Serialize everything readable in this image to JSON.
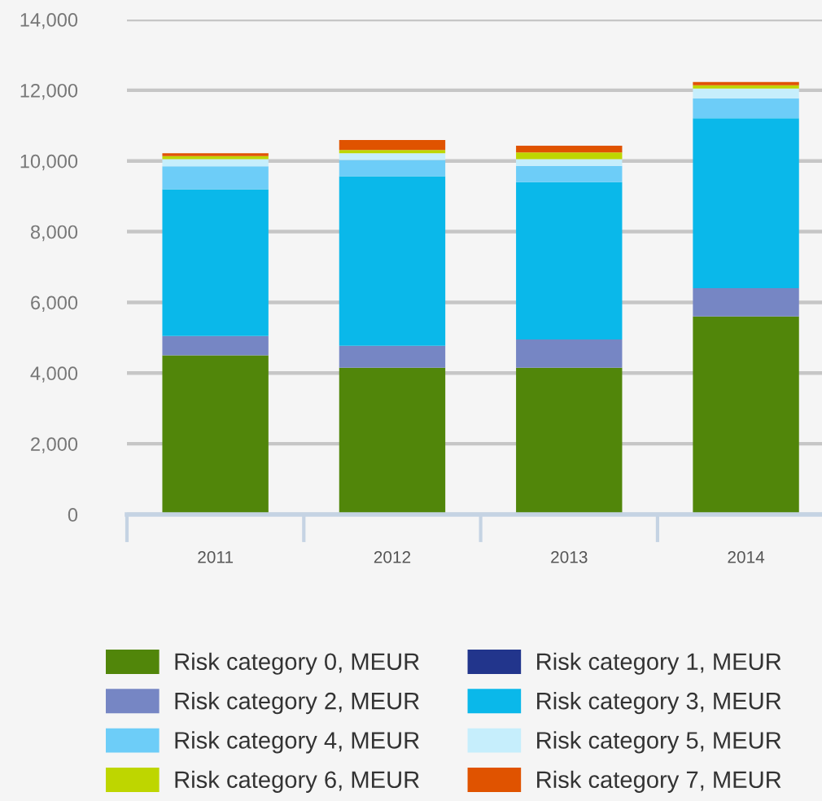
{
  "chart_data": {
    "type": "bar",
    "stacked": true,
    "categories": [
      "2011",
      "2012",
      "2013",
      "2014"
    ],
    "series": [
      {
        "name": "Risk category 0, MEUR",
        "color": "#51860a",
        "values": [
          4500,
          4150,
          4150,
          5600
        ]
      },
      {
        "name": "Risk category 1, MEUR",
        "color": "#22358c",
        "values": [
          0,
          0,
          0,
          0
        ]
      },
      {
        "name": "Risk category 2, MEUR",
        "color": "#7686c4",
        "values": [
          550,
          620,
          800,
          800
        ]
      },
      {
        "name": "Risk category 3, MEUR",
        "color": "#0ab8ea",
        "values": [
          4150,
          4800,
          4450,
          4810
        ]
      },
      {
        "name": "Risk category 4, MEUR",
        "color": "#6dcdf8",
        "values": [
          650,
          460,
          460,
          560
        ]
      },
      {
        "name": "Risk category 5, MEUR",
        "color": "#c6eefc",
        "values": [
          200,
          190,
          190,
          280
        ]
      },
      {
        "name": "Risk category 6, MEUR",
        "color": "#bed600",
        "values": [
          90,
          90,
          190,
          90
        ]
      },
      {
        "name": "Risk category 7, MEUR",
        "color": "#e05300",
        "values": [
          80,
          280,
          190,
          90
        ]
      }
    ],
    "ylim": [
      0,
      14000
    ],
    "yticks": [
      0,
      {
        "value": 2000,
        "label": "2,000"
      },
      {
        "value": 4000,
        "label": "4,000"
      },
      {
        "value": 6000,
        "label": "6,000"
      },
      {
        "value": 8000,
        "label": "8,000"
      },
      {
        "value": 10000,
        "label": "10,000"
      },
      {
        "value": 12000,
        "label": "12,000"
      },
      {
        "value": 14000,
        "label": "14,000"
      }
    ],
    "grid": "y",
    "legend": "bottom"
  }
}
